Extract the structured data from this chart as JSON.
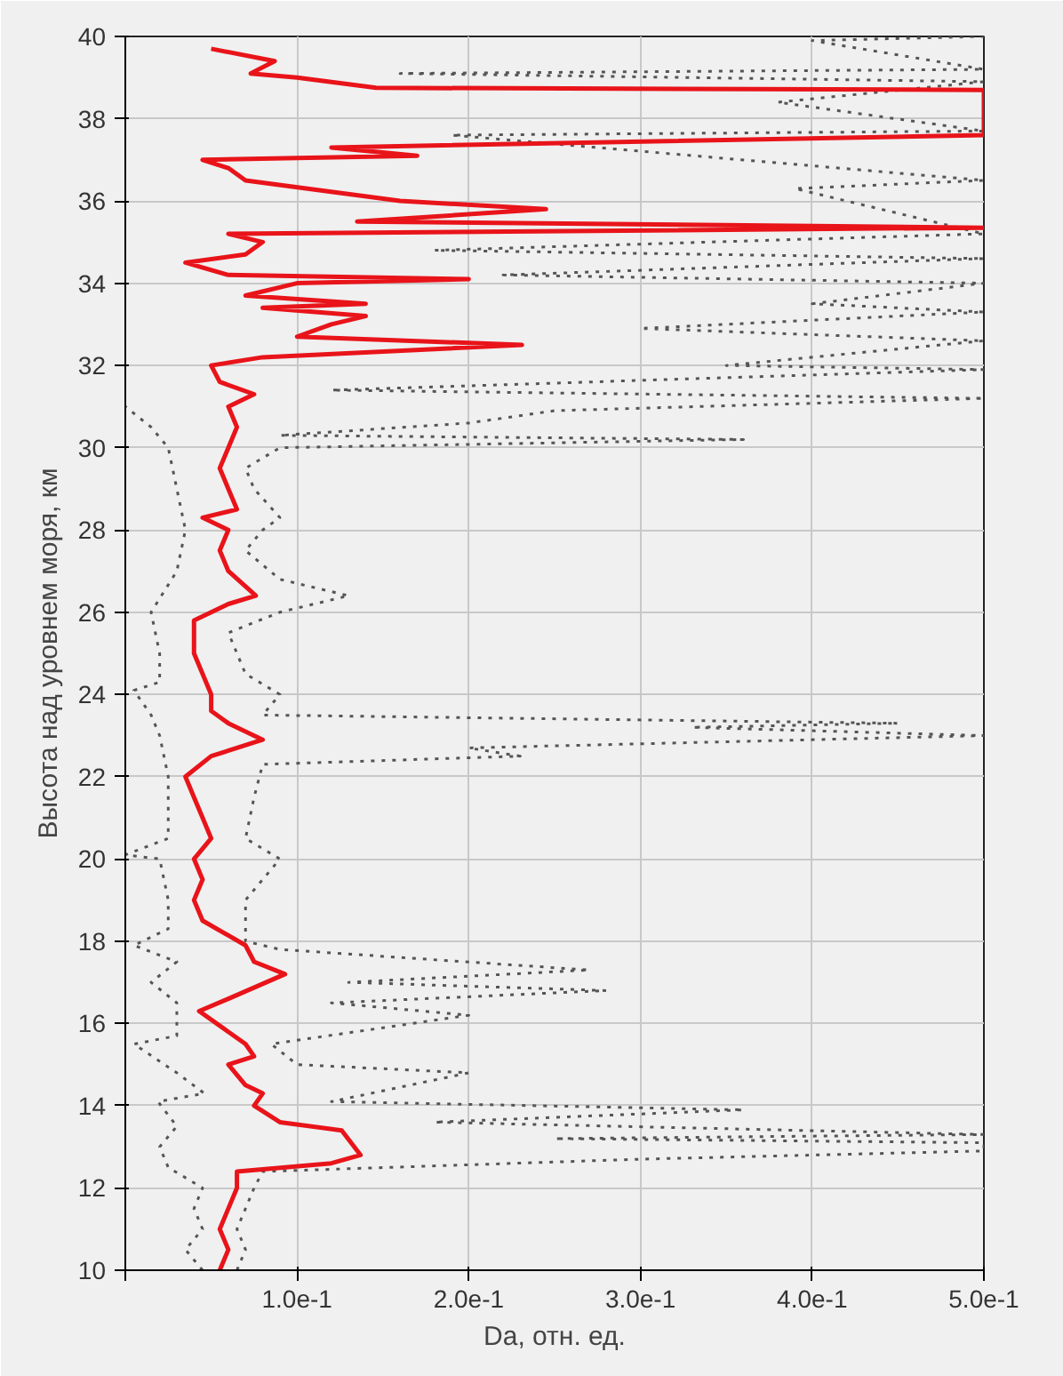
{
  "chart_data": {
    "type": "line",
    "xlabel": "Da, отн. ед.",
    "ylabel": "Высота над уровнем моря, км",
    "xlim": [
      0,
      0.5
    ],
    "ylim": [
      10,
      40
    ],
    "xticks": [
      {
        "value": 0,
        "label": null
      },
      {
        "value": 0.1,
        "label": "1.0e-1"
      },
      {
        "value": 0.2,
        "label": "2.0e-1"
      },
      {
        "value": 0.3,
        "label": "3.0e-1"
      },
      {
        "value": 0.4,
        "label": "4.0e-1"
      },
      {
        "value": 0.5,
        "label": "5.0e-1"
      }
    ],
    "yticks": [
      10,
      12,
      14,
      16,
      18,
      20,
      22,
      24,
      26,
      28,
      30,
      32,
      34,
      36,
      38,
      40
    ],
    "grid": true,
    "series": [
      {
        "color": "#555555",
        "line_style": "dotted",
        "x": [
          0.045,
          0.035,
          0.045,
          0.04,
          0.045,
          0.025,
          0.02,
          0.03,
          0.019,
          0.046,
          0.03,
          0.005,
          0.03,
          0.03,
          0.03,
          0.015,
          0.03,
          0.005,
          0.025,
          0.025,
          0.02,
          0.0,
          0.025,
          0.025,
          0.025,
          0.02,
          0.015,
          0.005,
          0.02,
          0.02,
          0.015,
          0.03,
          0.035,
          0.03,
          0.025,
          0.015,
          0.0
        ],
        "values": [
          10,
          10.5,
          11,
          11.5,
          12,
          12.5,
          13,
          13.5,
          14.1,
          14.3,
          14.8,
          15.5,
          15.7,
          16,
          16.5,
          17,
          17.5,
          17.9,
          18.3,
          19,
          20,
          20.1,
          20.5,
          21,
          22,
          23,
          23.5,
          24.1,
          24.3,
          25,
          26,
          27,
          28,
          29,
          30,
          30.5,
          31
        ]
      },
      {
        "color": "#555555",
        "line_style": "dotted",
        "x": [
          0.065,
          0.07,
          0.065,
          0.07,
          0.075,
          0.08,
          0.3,
          0.5,
          0.5,
          0.25,
          0.5,
          0.18,
          0.36,
          0.12,
          0.2,
          0.1,
          0.085,
          0.2,
          0.12,
          0.28,
          0.13,
          0.27,
          0.09,
          0.07,
          0.07,
          0.08,
          0.09,
          0.07,
          0.075,
          0.08,
          0.23,
          0.2,
          0.5,
          0.33,
          0.45,
          0.08,
          0.09,
          0.07,
          0.06,
          0.09,
          0.13,
          0.09,
          0.07,
          0.08,
          0.09,
          0.075,
          0.07,
          0.09,
          0.36,
          0.09,
          0.2,
          0.25,
          0.5,
          0.12,
          0.5,
          0.35,
          0.5,
          0.3,
          0.5,
          0.4,
          0.5,
          0.22,
          0.5,
          0.18,
          0.5,
          0.39,
          0.5,
          0.19,
          0.5,
          0.38,
          0.5,
          0.16,
          0.5,
          0.4,
          0.5
        ],
        "values": [
          10,
          10.5,
          11,
          11.5,
          12,
          12.4,
          12.7,
          12.9,
          13.1,
          13.2,
          13.3,
          13.6,
          13.9,
          14.1,
          14.8,
          15,
          15.5,
          16.2,
          16.5,
          16.8,
          17,
          17.3,
          17.8,
          18,
          19,
          19.5,
          20,
          20.5,
          21.5,
          22.3,
          22.5,
          22.7,
          23,
          23.2,
          23.3,
          23.5,
          24,
          24.5,
          25.5,
          26,
          26.4,
          26.8,
          27.5,
          28,
          28.3,
          29,
          29.5,
          30,
          30.2,
          30.3,
          30.6,
          30.9,
          31.2,
          31.4,
          31.9,
          32,
          32.6,
          32.9,
          33.3,
          33.5,
          34,
          34.2,
          34.6,
          34.8,
          35.2,
          36.3,
          36.5,
          37.6,
          37.7,
          38.4,
          38.9,
          39.1,
          39.2,
          39.9,
          40
        ]
      },
      {
        "color": "#e8141a",
        "line_style": "solid",
        "x": [
          0.055,
          0.06,
          0.055,
          0.06,
          0.065,
          0.065,
          0.12,
          0.137,
          0.126,
          0.09,
          0.075,
          0.08,
          0.07,
          0.06,
          0.075,
          0.07,
          0.043,
          0.06,
          0.093,
          0.075,
          0.07,
          0.045,
          0.04,
          0.045,
          0.04,
          0.05,
          0.045,
          0.04,
          0.035,
          0.05,
          0.08,
          0.06,
          0.05,
          0.05,
          0.04,
          0.04,
          0.06,
          0.076,
          0.06,
          0.055,
          0.06,
          0.045,
          0.065,
          0.06,
          0.055,
          0.06,
          0.065,
          0.06,
          0.075,
          0.055,
          0.05,
          0.08,
          0.231,
          0.1,
          0.12,
          0.14,
          0.08,
          0.14,
          0.07,
          0.1,
          0.2,
          0.06,
          0.035,
          0.07,
          0.08,
          0.06,
          0.5,
          0.135,
          0.245,
          0.16,
          0.07,
          0.06,
          0.045,
          0.17,
          0.12,
          0.5,
          0.5,
          0.146,
          0.1,
          0.073,
          0.087,
          0.05
        ],
        "values": [
          10,
          10.5,
          11,
          11.5,
          12,
          12.4,
          12.6,
          12.8,
          13.4,
          13.6,
          14,
          14.3,
          14.5,
          15,
          15.2,
          15.5,
          16.3,
          16.6,
          17.2,
          17.5,
          17.9,
          18.5,
          19,
          19.5,
          20,
          20.5,
          21,
          21.5,
          22,
          22.5,
          22.9,
          23.3,
          23.6,
          24,
          25,
          25.8,
          26.2,
          26.4,
          27,
          27.5,
          28,
          28.3,
          28.5,
          29,
          29.5,
          30,
          30.5,
          31,
          31.3,
          31.6,
          32,
          32.2,
          32.5,
          32.7,
          33,
          33.2,
          33.4,
          33.5,
          33.7,
          34,
          34.1,
          34.2,
          34.5,
          34.7,
          35,
          35.2,
          35.35,
          35.5,
          35.8,
          36,
          36.5,
          36.8,
          37,
          37.1,
          37.3,
          37.6,
          38.7,
          38.75,
          39,
          39.1,
          39.4,
          39.7
        ]
      }
    ]
  }
}
